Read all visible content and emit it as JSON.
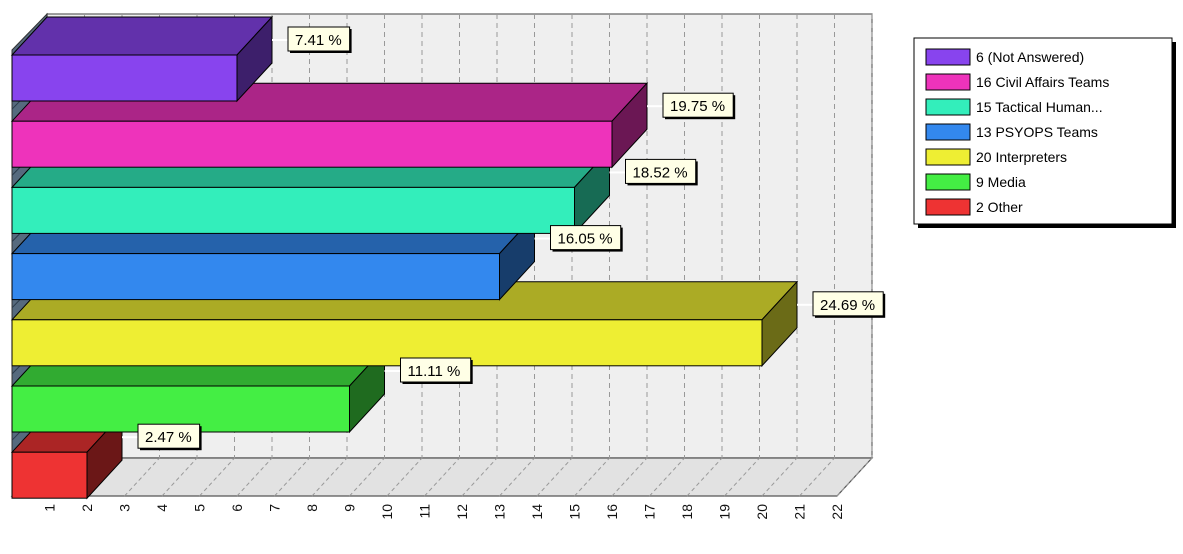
{
  "chart_data": {
    "type": "bar",
    "orientation": "horizontal",
    "style": "3d",
    "categories": [
      "(Not Answered)",
      "Civil Affairs Teams",
      "Tactical Human...",
      "PSYOPS Teams",
      "Interpreters",
      "Media",
      "Other"
    ],
    "values": [
      6,
      16,
      15,
      13,
      20,
      9,
      2
    ],
    "percent_labels": [
      "7.41 %",
      "19.75 %",
      "18.52 %",
      "16.05 %",
      "24.69 %",
      "11.11 %",
      "2.47 %"
    ],
    "legend": [
      "6 (Not Answered)",
      "16 Civil Affairs Teams",
      "15 Tactical Human...",
      "13 PSYOPS Teams",
      "20 Interpreters",
      "9 Media",
      "2 Other"
    ],
    "legend_position": "right",
    "colors": [
      "#8844ee",
      "#ee33bb",
      "#33eebb",
      "#3388ee",
      "#eeee33",
      "#44ee44",
      "#ee3333"
    ],
    "x_ticks": [
      "1",
      "2",
      "3",
      "4",
      "5",
      "6",
      "7",
      "8",
      "9",
      "10",
      "11",
      "12",
      "13",
      "14",
      "15",
      "16",
      "17",
      "18",
      "19",
      "20",
      "21",
      "22"
    ],
    "xlim": [
      0,
      22
    ],
    "grid": true,
    "title": "",
    "xlabel": "",
    "ylabel": ""
  }
}
